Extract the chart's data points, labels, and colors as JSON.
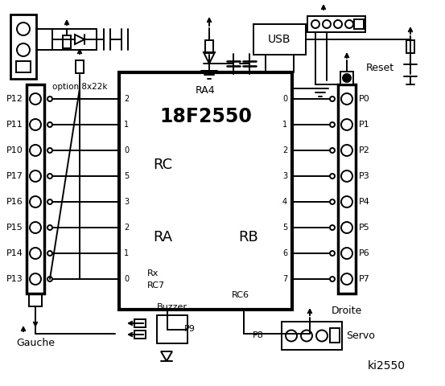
{
  "bg_color": "#ffffff",
  "title": "ki2550",
  "chip_label": "18F2550",
  "ra4_label": "RA4",
  "rc_label": "RC",
  "ra_label": "RA",
  "rb_label": "RB",
  "rc6_label": "RC6",
  "rc7_label": "Rx\nRC7",
  "left_pins": [
    "P12",
    "P11",
    "P10",
    "P17",
    "P16",
    "P15",
    "P14",
    "P13"
  ],
  "left_pin_nums": [
    "2",
    "1",
    "0",
    "5",
    "3",
    "2",
    "1",
    "0"
  ],
  "right_pins": [
    "P0",
    "P1",
    "P2",
    "P3",
    "P4",
    "P5",
    "P6",
    "P7"
  ],
  "right_pin_nums": [
    "0",
    "1",
    "2",
    "3",
    "4",
    "5",
    "6",
    "7"
  ],
  "gauche_label": "Gauche",
  "droite_label": "Droite",
  "usb_label": "USB",
  "reset_label": "Reset",
  "servo_label": "Servo",
  "buzzer_label": "Buzzer",
  "p8_label": "P8",
  "p9_label": "P9",
  "option_label": "option 8x22k"
}
